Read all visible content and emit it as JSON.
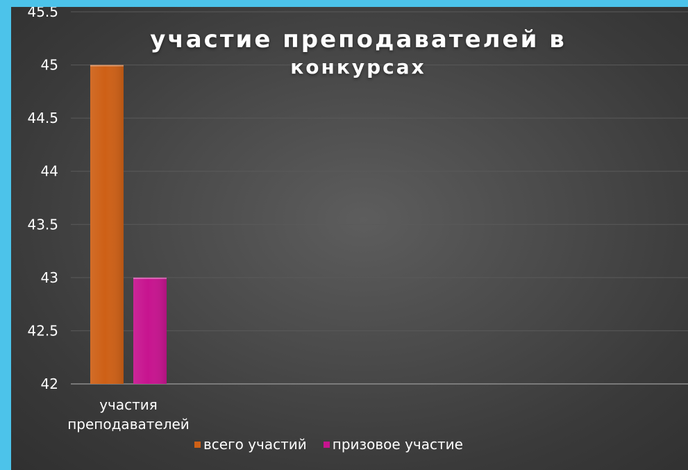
{
  "chart_data": {
    "type": "bar",
    "title_lines": [
      "участие преподавателей в",
      "конкурсах"
    ],
    "categories": [
      "участия преподавателей"
    ],
    "category_label_lines": [
      "участия",
      "преподавателей"
    ],
    "series": [
      {
        "name": "всего участий",
        "values": [
          45
        ],
        "color": "#ce6016"
      },
      {
        "name": "призовое участие",
        "values": [
          43
        ],
        "color": "#c7148f"
      }
    ],
    "ylim": [
      42,
      45.5
    ],
    "yticks": [
      "42",
      "42.5",
      "43",
      "43.5",
      "44",
      "44.5",
      "45",
      "45.5"
    ],
    "grid": true,
    "legend_position": "bottom"
  },
  "colors": {
    "page_background": "#4cc3ea",
    "panel_background": "#3e3e3e",
    "gridline": "#5a5a5a",
    "axis_line": "#8d8d8d",
    "text": "#ffffff"
  }
}
